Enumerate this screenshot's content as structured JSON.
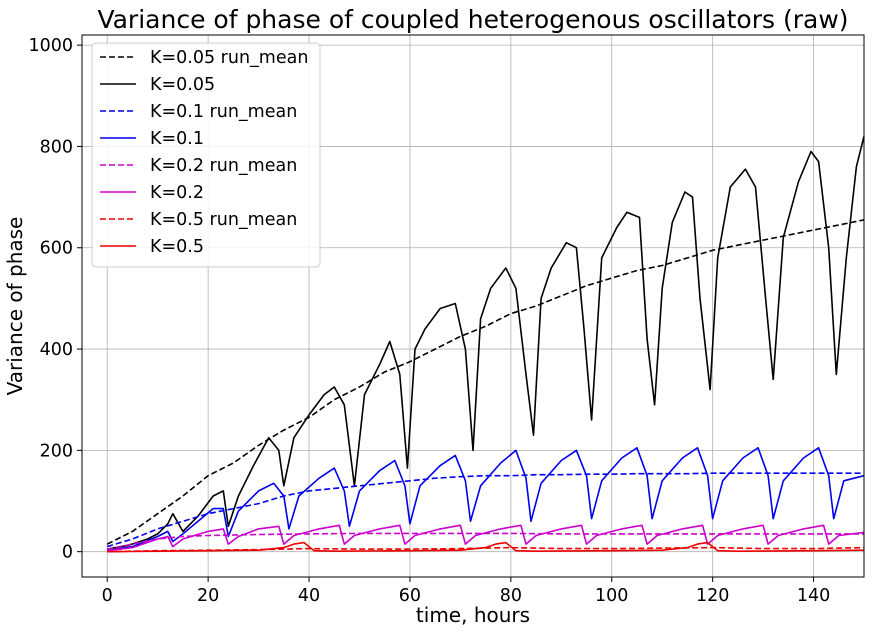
{
  "chart_data": {
    "type": "line",
    "title": "Variance of phase of coupled heterogenous oscillators (raw)",
    "xlabel": "time, hours",
    "ylabel": "Variance of phase",
    "xlim": [
      -5,
      150
    ],
    "ylim": [
      -50,
      1020
    ],
    "xticks": [
      0,
      20,
      40,
      60,
      80,
      100,
      120,
      140
    ],
    "yticks": [
      0,
      200,
      400,
      600,
      800,
      1000
    ],
    "grid": true,
    "legend_position": "top-left",
    "series": [
      {
        "name": "K=0.05 run_mean",
        "color": "#000000",
        "dashed": true,
        "x": [
          0,
          5,
          10,
          15,
          20,
          25,
          30,
          35,
          40,
          45,
          50,
          55,
          60,
          65,
          70,
          75,
          80,
          85,
          90,
          95,
          100,
          105,
          110,
          115,
          120,
          125,
          130,
          135,
          140,
          145,
          150
        ],
        "y": [
          15,
          40,
          75,
          110,
          150,
          175,
          210,
          240,
          265,
          300,
          325,
          355,
          375,
          400,
          425,
          445,
          470,
          485,
          505,
          525,
          540,
          555,
          565,
          580,
          595,
          605,
          615,
          625,
          635,
          645,
          655
        ]
      },
      {
        "name": "K=0.05",
        "color": "#000000",
        "dashed": false,
        "x": [
          0,
          4,
          8,
          10,
          12,
          13,
          15,
          18,
          21,
          23,
          24,
          26,
          29,
          32,
          34,
          35,
          37,
          40,
          43,
          45,
          47,
          49,
          51,
          54,
          56,
          58,
          59.5,
          61,
          63,
          66,
          69,
          71,
          72.5,
          74,
          76,
          79,
          81,
          83,
          84.5,
          86,
          88,
          91,
          93,
          94.5,
          96,
          98,
          101,
          103,
          105.5,
          107,
          108.5,
          110,
          112,
          114.5,
          116,
          117.5,
          119.5,
          121,
          123.5,
          126.5,
          128.5,
          130.5,
          132,
          134,
          137,
          139.5,
          141,
          143,
          144.5,
          146.5,
          148.5,
          150
        ],
        "y": [
          5,
          12,
          25,
          35,
          55,
          75,
          40,
          70,
          110,
          120,
          50,
          110,
          170,
          225,
          200,
          130,
          225,
          270,
          310,
          325,
          290,
          130,
          310,
          370,
          415,
          350,
          165,
          400,
          440,
          480,
          490,
          400,
          200,
          460,
          520,
          560,
          520,
          350,
          230,
          500,
          560,
          610,
          600,
          440,
          260,
          580,
          640,
          670,
          660,
          420,
          290,
          520,
          650,
          710,
          700,
          500,
          320,
          580,
          720,
          755,
          720,
          500,
          340,
          620,
          730,
          790,
          770,
          600,
          350,
          580,
          760,
          820
        ]
      },
      {
        "name": "K=0.1 run_mean",
        "color": "#0000ee",
        "dashed": true,
        "x": [
          0,
          5,
          10,
          15,
          20,
          25,
          30,
          35,
          40,
          45,
          50,
          55,
          60,
          65,
          70,
          75,
          80,
          85,
          90,
          95,
          100,
          105,
          110,
          115,
          120,
          125,
          130,
          135,
          140,
          145,
          150
        ],
        "y": [
          10,
          25,
          45,
          60,
          75,
          85,
          95,
          110,
          120,
          125,
          130,
          135,
          140,
          145,
          148,
          150,
          150,
          152,
          152,
          153,
          153,
          154,
          154,
          154,
          155,
          155,
          155,
          155,
          155,
          155,
          155
        ]
      },
      {
        "name": "K=0.1",
        "color": "#0000ee",
        "dashed": false,
        "x": [
          0,
          5,
          10,
          12,
          13,
          15,
          18,
          21,
          23,
          24,
          26,
          30,
          33,
          35,
          36,
          38,
          42,
          45,
          47,
          48,
          50,
          54,
          57,
          59,
          60,
          62,
          66,
          69,
          71,
          72,
          74,
          78,
          81,
          83,
          84,
          86,
          90,
          93,
          95,
          96,
          98,
          102,
          105,
          107,
          108,
          110,
          114,
          117,
          119,
          120,
          122,
          126,
          129,
          131,
          132,
          134,
          138,
          141,
          143,
          144,
          146,
          150
        ],
        "y": [
          2,
          10,
          30,
          40,
          20,
          35,
          60,
          85,
          85,
          30,
          80,
          120,
          135,
          110,
          45,
          110,
          145,
          165,
          120,
          50,
          120,
          160,
          180,
          130,
          55,
          130,
          170,
          190,
          140,
          60,
          130,
          175,
          200,
          145,
          60,
          135,
          180,
          200,
          150,
          65,
          140,
          185,
          205,
          150,
          65,
          140,
          185,
          205,
          150,
          65,
          140,
          185,
          205,
          150,
          65,
          140,
          185,
          205,
          150,
          65,
          140,
          150
        ]
      },
      {
        "name": "K=0.2 run_mean",
        "color": "#cc00cc",
        "dashed": true,
        "x": [
          0,
          5,
          10,
          15,
          20,
          30,
          40,
          50,
          60,
          70,
          80,
          90,
          100,
          110,
          120,
          130,
          140,
          150
        ],
        "y": [
          5,
          15,
          25,
          30,
          32,
          34,
          35,
          36,
          36,
          36,
          36,
          35,
          35,
          35,
          35,
          35,
          35,
          35
        ]
      },
      {
        "name": "K=0.2",
        "color": "#cc00cc",
        "dashed": false,
        "x": [
          0,
          5,
          10,
          12,
          13,
          15,
          20,
          23,
          24,
          26,
          30,
          34,
          35,
          37,
          42,
          46,
          47,
          49,
          54,
          58,
          59,
          61,
          66,
          70,
          71,
          73,
          78,
          82,
          83,
          85,
          90,
          94,
          95,
          97,
          102,
          106,
          107,
          109,
          114,
          118,
          119,
          121,
          126,
          130,
          131,
          133,
          138,
          142,
          143,
          145,
          150
        ],
        "y": [
          2,
          8,
          25,
          30,
          10,
          25,
          40,
          45,
          15,
          30,
          45,
          50,
          15,
          32,
          45,
          52,
          15,
          32,
          45,
          52,
          15,
          32,
          45,
          52,
          15,
          32,
          45,
          52,
          15,
          32,
          45,
          52,
          15,
          32,
          45,
          52,
          15,
          32,
          45,
          52,
          15,
          32,
          45,
          52,
          15,
          32,
          45,
          52,
          15,
          32,
          38
        ]
      },
      {
        "name": "K=0.5 run_mean",
        "color": "#ee0000",
        "dashed": true,
        "x": [
          0,
          10,
          20,
          30,
          40,
          50,
          60,
          70,
          80,
          90,
          100,
          110,
          120,
          130,
          140,
          150
        ],
        "y": [
          0,
          2,
          3,
          4,
          6,
          5,
          5,
          6,
          8,
          6,
          6,
          7,
          8,
          6,
          6,
          8
        ]
      },
      {
        "name": "K=0.5",
        "color": "#ee0000",
        "dashed": false,
        "x": [
          0,
          10,
          20,
          30,
          35,
          37,
          39,
          41,
          45,
          60,
          70,
          75,
          77,
          79,
          81,
          85,
          100,
          110,
          115,
          117,
          119,
          121,
          125,
          140,
          150
        ],
        "y": [
          0,
          1,
          2,
          3,
          8,
          15,
          18,
          2,
          1,
          2,
          3,
          8,
          15,
          18,
          2,
          1,
          2,
          3,
          8,
          15,
          18,
          2,
          1,
          2,
          3
        ]
      }
    ]
  }
}
